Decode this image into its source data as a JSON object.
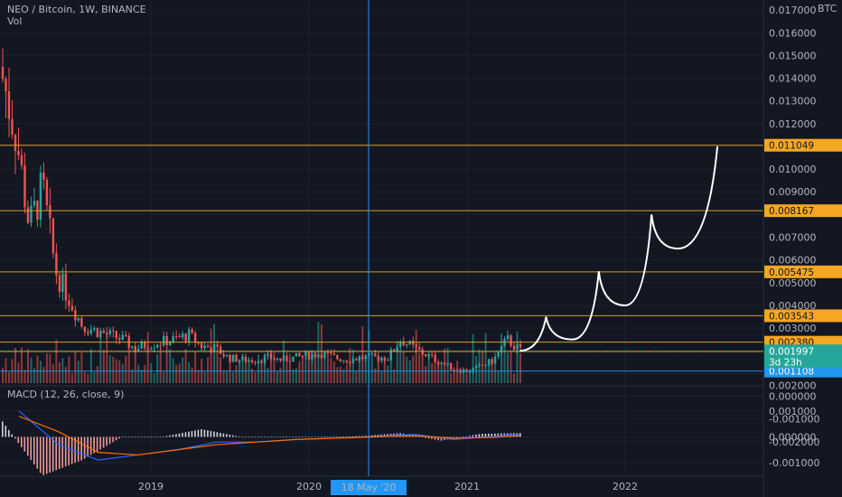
{
  "header": {
    "symbol_line": "NEO / Bitcoin, 1W, BINANCE",
    "vol_label": "Vol"
  },
  "macd": {
    "label": "MACD (12, 26, close, 9)"
  },
  "axis": {
    "unit": "BTC",
    "price_ticks": [
      "0.017000",
      "0.016000",
      "0.015000",
      "0.014000",
      "0.013000",
      "0.012000",
      "0.010000",
      "0.009000",
      "0.007000",
      "0.006000",
      "0.005000",
      "0.004000",
      "0.003000",
      "0.000000",
      "-0.001000",
      "-0.002000"
    ],
    "macd_ticks": [
      "0.002000",
      "0.001000",
      "0.000000",
      "-0.001000"
    ],
    "time_labels": [
      "2019",
      "2020",
      "2021",
      "2022"
    ],
    "crosshair_date": "18 May '20"
  },
  "levels": [
    {
      "value": "0.011049",
      "color": "#f5a623"
    },
    {
      "value": "0.008167",
      "color": "#f5a623"
    },
    {
      "value": "0.005475",
      "color": "#f5a623"
    },
    {
      "value": "0.003543",
      "color": "#f5a623"
    },
    {
      "value": "0.002380",
      "color": "#f5a623"
    },
    {
      "value": "0.001968",
      "color": "#f5a623"
    },
    {
      "value": "0.001108",
      "color": "#2196f3"
    }
  ],
  "last_price": {
    "value": "0.001997",
    "countdown": "3d 23h",
    "color": "#26a69a"
  },
  "colors": {
    "background": "#131722",
    "up": "#26a69a",
    "down": "#ef5350",
    "level": "#f5a623",
    "crosshair": "#2196f3",
    "macd": "#2962ff",
    "signal": "#ff6d00"
  },
  "chart_data": {
    "type": "candlestick",
    "title": "NEO / Bitcoin, 1W, BINANCE",
    "x_range": [
      "2018-02",
      "2022-12"
    ],
    "y_range": [
      -0.0022,
      0.0173
    ],
    "close_series": [
      {
        "date": "2018-02",
        "close": 0.014
      },
      {
        "date": "2018-03",
        "close": 0.0115
      },
      {
        "date": "2018-04",
        "close": 0.0075
      },
      {
        "date": "2018-05",
        "close": 0.0092
      },
      {
        "date": "2018-06",
        "close": 0.0055
      },
      {
        "date": "2018-07",
        "close": 0.0043
      },
      {
        "date": "2018-08",
        "close": 0.0031
      },
      {
        "date": "2018-09",
        "close": 0.0029
      },
      {
        "date": "2018-10",
        "close": 0.0027
      },
      {
        "date": "2018-11",
        "close": 0.0025
      },
      {
        "date": "2018-12",
        "close": 0.0021
      },
      {
        "date": "2019-01",
        "close": 0.0023
      },
      {
        "date": "2019-02",
        "close": 0.0024
      },
      {
        "date": "2019-03",
        "close": 0.0025
      },
      {
        "date": "2019-04",
        "close": 0.0027
      },
      {
        "date": "2019-05",
        "close": 0.0022
      },
      {
        "date": "2019-06",
        "close": 0.0021
      },
      {
        "date": "2019-07",
        "close": 0.0017
      },
      {
        "date": "2019-08",
        "close": 0.0016
      },
      {
        "date": "2019-09",
        "close": 0.0016
      },
      {
        "date": "2019-10",
        "close": 0.0017
      },
      {
        "date": "2019-11",
        "close": 0.0016
      },
      {
        "date": "2019-12",
        "close": 0.0017
      },
      {
        "date": "2020-01",
        "close": 0.0018
      },
      {
        "date": "2020-02",
        "close": 0.0019
      },
      {
        "date": "2020-03",
        "close": 0.0017
      },
      {
        "date": "2020-04",
        "close": 0.0016
      },
      {
        "date": "2020-05",
        "close": 0.0017
      },
      {
        "date": "2020-06",
        "close": 0.0017
      },
      {
        "date": "2020-07",
        "close": 0.0017
      },
      {
        "date": "2020-08",
        "close": 0.0025
      },
      {
        "date": "2020-09",
        "close": 0.0021
      },
      {
        "date": "2020-10",
        "close": 0.0018
      },
      {
        "date": "2020-11",
        "close": 0.0015
      },
      {
        "date": "2020-12",
        "close": 0.0012
      },
      {
        "date": "2021-01",
        "close": 0.0011
      },
      {
        "date": "2021-02",
        "close": 0.0013
      },
      {
        "date": "2021-03",
        "close": 0.0016
      },
      {
        "date": "2021-04",
        "close": 0.0025
      },
      {
        "date": "2021-05",
        "close": 0.002
      }
    ],
    "projection": [
      {
        "date": "2021-05",
        "value": 0.002
      },
      {
        "date": "2021-07",
        "value": 0.0035
      },
      {
        "date": "2021-09",
        "value": 0.0025
      },
      {
        "date": "2021-11",
        "value": 0.0055
      },
      {
        "date": "2022-01",
        "value": 0.004
      },
      {
        "date": "2022-03",
        "value": 0.008
      },
      {
        "date": "2022-05",
        "value": 0.0065
      },
      {
        "date": "2022-08",
        "value": 0.011
      }
    ],
    "macd_series": [
      {
        "date": "2018-03",
        "macd": 0.001,
        "signal": 0.0008
      },
      {
        "date": "2018-06",
        "macd": -0.0003,
        "signal": 0.0002
      },
      {
        "date": "2018-09",
        "macd": -0.0009,
        "signal": -0.0006
      },
      {
        "date": "2018-12",
        "macd": -0.0007,
        "signal": -0.0007
      },
      {
        "date": "2019-03",
        "macd": -0.0005,
        "signal": -0.0005
      },
      {
        "date": "2019-06",
        "macd": -0.0002,
        "signal": -0.0003
      },
      {
        "date": "2019-09",
        "macd": -0.0002,
        "signal": -0.0002
      },
      {
        "date": "2019-12",
        "macd": -0.0001,
        "signal": -0.0001
      },
      {
        "date": "2020-03",
        "macd": -5e-05,
        "signal": -5e-05
      },
      {
        "date": "2020-06",
        "macd": 1e-05,
        "signal": 0.0
      },
      {
        "date": "2020-09",
        "macd": 0.0001,
        "signal": 5e-05
      },
      {
        "date": "2020-12",
        "macd": -0.0001,
        "signal": -5e-05
      },
      {
        "date": "2021-03",
        "macd": 2e-05,
        "signal": -2e-05
      },
      {
        "date": "2021-05",
        "macd": 0.0001,
        "signal": 5e-05
      }
    ],
    "legend": "none",
    "grid": true
  }
}
